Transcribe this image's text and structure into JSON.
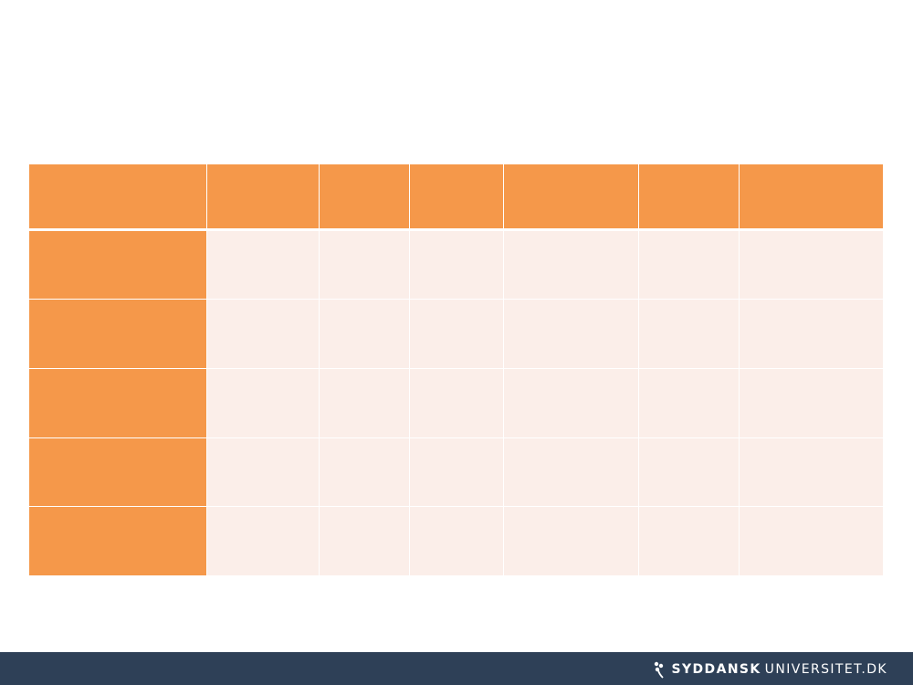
{
  "table": {
    "columns": 7,
    "header": [
      "",
      "",
      "",
      "",
      "",
      "",
      ""
    ],
    "rows": [
      [
        "",
        "",
        "",
        "",
        "",
        "",
        ""
      ],
      [
        "",
        "",
        "",
        "",
        "",
        "",
        ""
      ],
      [
        "",
        "",
        "",
        "",
        "",
        "",
        ""
      ],
      [
        "",
        "",
        "",
        "",
        "",
        "",
        ""
      ],
      [
        "",
        "",
        "",
        "",
        "",
        "",
        ""
      ]
    ]
  },
  "footer": {
    "logo_text_bold": "SYDDANSK",
    "logo_text_regular": "UNIVERSITET.DK",
    "logo_icon": "sdu-flower-icon"
  },
  "colors": {
    "accent_orange": "#f5984a",
    "cell_tint": "#fbeee9",
    "footer_bg": "#2e4057"
  }
}
